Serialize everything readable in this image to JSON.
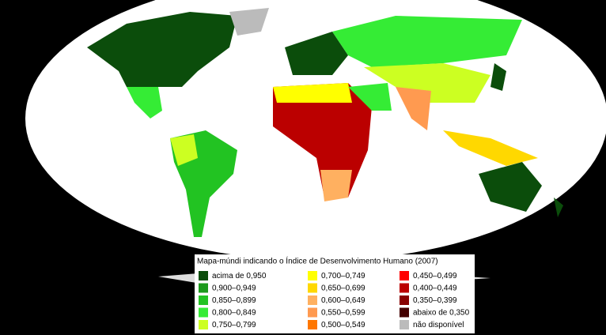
{
  "legend": {
    "title": "Mapa-múndi indicando o Índice de Desenvolvimento Humano (2007)",
    "items": [
      {
        "label": "acima de 0,950",
        "color": "#0b4d0b"
      },
      {
        "label": "0,900–0,949",
        "color": "#1c9a1c"
      },
      {
        "label": "0,850–0,899",
        "color": "#22c322"
      },
      {
        "label": "0,800–0,849",
        "color": "#35ec35"
      },
      {
        "label": "0,750–0,799",
        "color": "#ccff22"
      },
      {
        "label": "0,700–0,749",
        "color": "#ffff00"
      },
      {
        "label": "0,650–0,699",
        "color": "#ffd800"
      },
      {
        "label": "0,600–0,649",
        "color": "#ffb060"
      },
      {
        "label": "0,550–0,599",
        "color": "#ff9a50"
      },
      {
        "label": "0,500–0,549",
        "color": "#ff7700"
      },
      {
        "label": "0,450–0,499",
        "color": "#ff0000"
      },
      {
        "label": "0,400–0,449",
        "color": "#bb0000"
      },
      {
        "label": "0,350–0,399",
        "color": "#880000"
      },
      {
        "label": "abaixo de 0,350",
        "color": "#440000"
      },
      {
        "label": "não disponível",
        "color": "#bbbbbb"
      }
    ]
  }
}
